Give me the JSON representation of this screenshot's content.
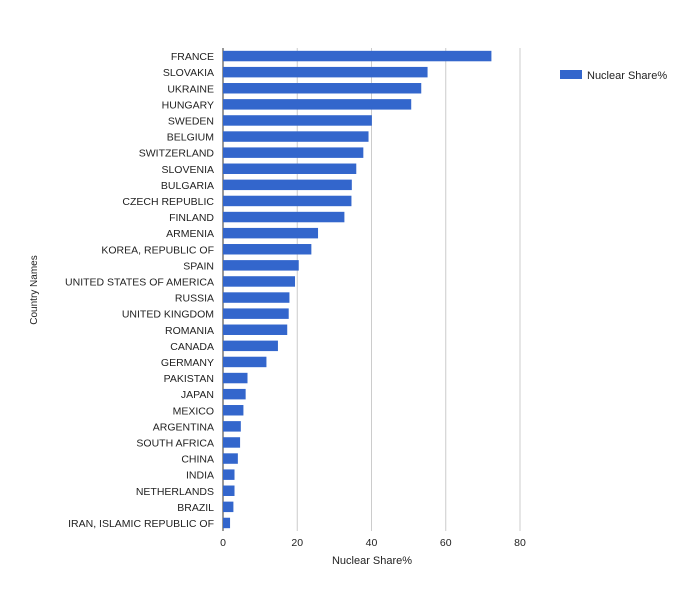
{
  "chart_data": {
    "type": "bar",
    "orientation": "horizontal",
    "title": "",
    "xlabel": "Nuclear Share%",
    "ylabel": "Country Names",
    "xlim": [
      0,
      80
    ],
    "x_ticks": [
      0,
      20,
      40,
      60,
      80
    ],
    "grid": true,
    "legend_position": "top-right",
    "bar_color": "#3366cc",
    "grid_color": "#cccccc",
    "categories": [
      "FRANCE",
      "SLOVAKIA",
      "UKRAINE",
      "HUNGARY",
      "SWEDEN",
      "BELGIUM",
      "SWITZERLAND",
      "SLOVENIA",
      "BULGARIA",
      "CZECH REPUBLIC",
      "FINLAND",
      "ARMENIA",
      "KOREA, REPUBLIC OF",
      "SPAIN",
      "UNITED STATES OF AMERICA",
      "RUSSIA",
      "UNITED KINGDOM",
      "ROMANIA",
      "CANADA",
      "GERMANY",
      "PAKISTAN",
      "JAPAN",
      "MEXICO",
      "ARGENTINA",
      "SOUTH AFRICA",
      "CHINA",
      "INDIA",
      "NETHERLANDS",
      "BRAZIL",
      "IRAN, ISLAMIC REPUBLIC OF"
    ],
    "series": [
      {
        "name": "Nuclear Share%",
        "values": [
          72.3,
          55.1,
          53.4,
          50.7,
          40.1,
          39.2,
          37.8,
          35.9,
          34.7,
          34.6,
          32.7,
          25.6,
          23.8,
          20.4,
          19.4,
          17.9,
          17.7,
          17.3,
          14.8,
          11.7,
          6.6,
          6.1,
          5.5,
          4.8,
          4.6,
          4.0,
          3.1,
          3.1,
          2.8,
          1.9
        ]
      }
    ]
  }
}
